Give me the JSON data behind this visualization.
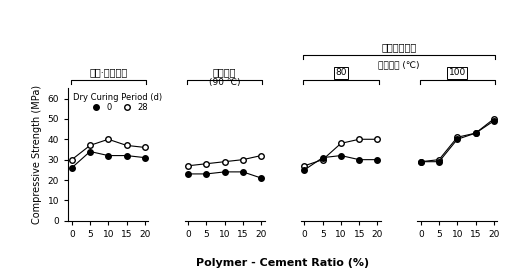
{
  "x": [
    0,
    5,
    10,
    15,
    20
  ],
  "panel1_open": [
    30,
    37,
    40,
    37,
    36
  ],
  "panel1_closed": [
    26,
    34,
    32,
    32,
    31
  ],
  "panel2_open": [
    27,
    28,
    29,
    30,
    32
  ],
  "panel2_closed": [
    23,
    23,
    24,
    24,
    21
  ],
  "panel3_open": [
    27,
    30,
    38,
    40,
    40
  ],
  "panel3_closed": [
    25,
    31,
    32,
    30,
    30
  ],
  "panel4_open": [
    29,
    30,
    41,
    43,
    50
  ],
  "panel4_closed": [
    29,
    29,
    40,
    43,
    49
  ],
  "ylabel": "Compressive Strength (MPa)",
  "xlabel": "Polymer - Cement Ratio (%)",
  "ylim": [
    0,
    65
  ],
  "yticks": [
    0,
    10,
    20,
    30,
    40,
    50,
    60
  ],
  "legend_label_closed": "0",
  "legend_label_open": "28",
  "legend_title": "Dry Curing Period (d)",
  "header1": "습윤·기중양생",
  "header2": "증기양생",
  "header2_sub": "(90 ℃)",
  "header3": "증기가열양생",
  "header3_sub": "가열온도 (℃)",
  "box80": "80",
  "box100": "100"
}
